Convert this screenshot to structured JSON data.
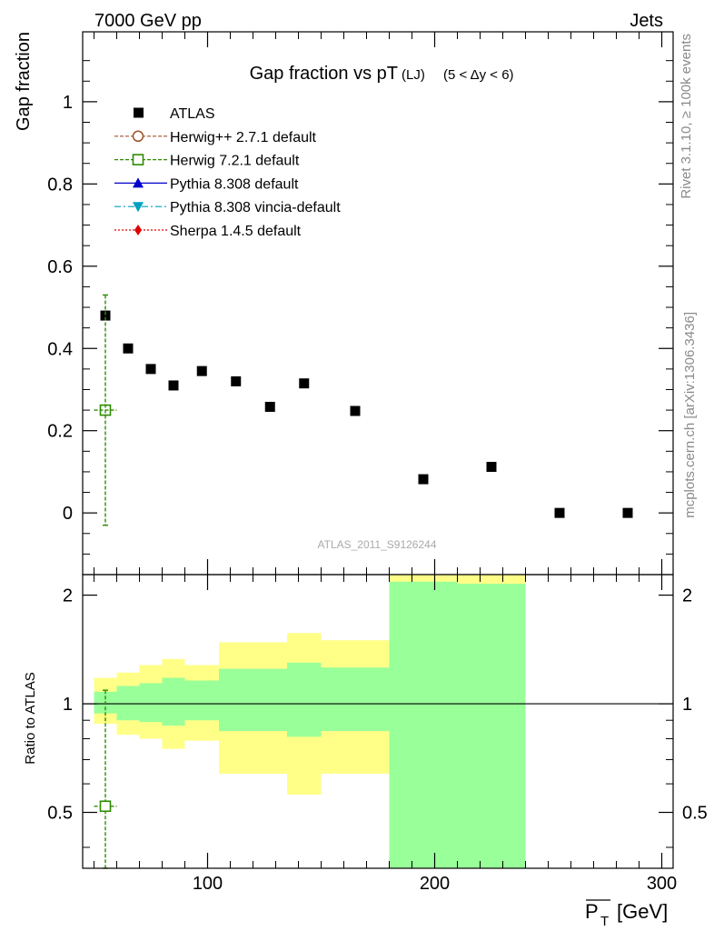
{
  "header": {
    "left": "7000 GeV pp",
    "right": "Jets",
    "side_top": "Rivet 3.1.10, ≥ 100k events",
    "side_bottom": "mcplots.cern.ch [arXiv:1306.3436]"
  },
  "colors": {
    "data": "#000000",
    "herwigpp": "#a0522d",
    "herwig7": "#2e8b00",
    "pythia": "#0000cc",
    "vincia": "#00a0c0",
    "sherpa": "#e00000",
    "band_outer": "#ffff88",
    "band_inner": "#99ff99"
  },
  "chart_data": [
    {
      "type": "scatter",
      "title": "Gap fraction vs pT",
      "title_sub": "(LJ)",
      "title_cut": "(5 < Δy < 6)",
      "ylabel": "Gap fraction",
      "xlim": [
        45,
        305
      ],
      "ylim": [
        -0.15,
        1.17
      ],
      "yticks": [
        0,
        0.2,
        0.4,
        0.6,
        0.8,
        1
      ],
      "ytick_labels": [
        "0",
        "0.2",
        "0.4",
        "0.6",
        "0.8",
        "1"
      ],
      "analysis_label": "ATLAS_2011_S9126244",
      "legend": [
        {
          "key": "data",
          "label": "ATLAS"
        },
        {
          "key": "herwigpp",
          "label": "Herwig++ 2.7.1 default"
        },
        {
          "key": "herwig7",
          "label": "Herwig 7.2.1 default"
        },
        {
          "key": "pythia",
          "label": "Pythia 8.308 default"
        },
        {
          "key": "vincia",
          "label": "Pythia 8.308 vincia-default"
        },
        {
          "key": "sherpa",
          "label": "Sherpa 1.4.5 default"
        }
      ],
      "series": [
        {
          "name": "ATLAS",
          "x": [
            55,
            65,
            75,
            85,
            97.5,
            112.5,
            127.5,
            142.5,
            165,
            195,
            225,
            255,
            285
          ],
          "y": [
            0.48,
            0.4,
            0.35,
            0.31,
            0.345,
            0.32,
            0.258,
            0.315,
            0.248,
            0.082,
            0.112,
            0.0,
            0.0
          ]
        },
        {
          "name": "Herwig 7.2.1 default",
          "x": [
            55
          ],
          "y": [
            0.25
          ],
          "xerr": [
            5
          ],
          "yerr_low": [
            0.28
          ],
          "yerr_high": [
            0.28
          ]
        }
      ]
    },
    {
      "type": "area",
      "ylabel": "Ratio to ATLAS",
      "xlabel_main": "P",
      "xlabel_sub": "T",
      "xlabel_unit": "[GeV]",
      "xlim": [
        45,
        305
      ],
      "ylim": [
        0.35,
        2.28
      ],
      "xticks": [
        100,
        200,
        300
      ],
      "xtick_labels": [
        "100",
        "200",
        "300"
      ],
      "yticks": [
        0.5,
        1,
        2
      ],
      "ytick_labels": [
        "0.5",
        "1",
        "2"
      ],
      "reference_line": 1,
      "bins": [
        {
          "lo": 50,
          "hi": 60,
          "outer": [
            0.88,
            1.18
          ],
          "inner": [
            0.94,
            1.08
          ]
        },
        {
          "lo": 60,
          "hi": 70,
          "outer": [
            0.82,
            1.22
          ],
          "inner": [
            0.9,
            1.12
          ]
        },
        {
          "lo": 70,
          "hi": 80,
          "outer": [
            0.8,
            1.28
          ],
          "inner": [
            0.89,
            1.14
          ]
        },
        {
          "lo": 80,
          "hi": 90,
          "outer": [
            0.75,
            1.33
          ],
          "inner": [
            0.87,
            1.18
          ]
        },
        {
          "lo": 90,
          "hi": 105,
          "outer": [
            0.79,
            1.28
          ],
          "inner": [
            0.9,
            1.16
          ]
        },
        {
          "lo": 105,
          "hi": 120,
          "outer": [
            0.64,
            1.48
          ],
          "inner": [
            0.84,
            1.25
          ]
        },
        {
          "lo": 120,
          "hi": 135,
          "outer": [
            0.64,
            1.48
          ],
          "inner": [
            0.84,
            1.25
          ]
        },
        {
          "lo": 135,
          "hi": 150,
          "outer": [
            0.56,
            1.57
          ],
          "inner": [
            0.81,
            1.3
          ]
        },
        {
          "lo": 150,
          "hi": 180,
          "outer": [
            0.64,
            1.5
          ],
          "inner": [
            0.84,
            1.26
          ]
        },
        {
          "lo": 180,
          "hi": 210,
          "outer": [
            0.3,
            2.5
          ],
          "inner": [
            0.3,
            2.18
          ]
        },
        {
          "lo": 210,
          "hi": 240,
          "outer": [
            0.3,
            2.5
          ],
          "inner": [
            0.3,
            2.15
          ]
        }
      ],
      "series": [
        {
          "name": "Herwig 7.2.1 default",
          "x": [
            55
          ],
          "y": [
            0.52
          ],
          "xerr": [
            5
          ],
          "yerr_low": [
            0.5
          ],
          "yerr_high": [
            0.57
          ]
        }
      ]
    }
  ]
}
